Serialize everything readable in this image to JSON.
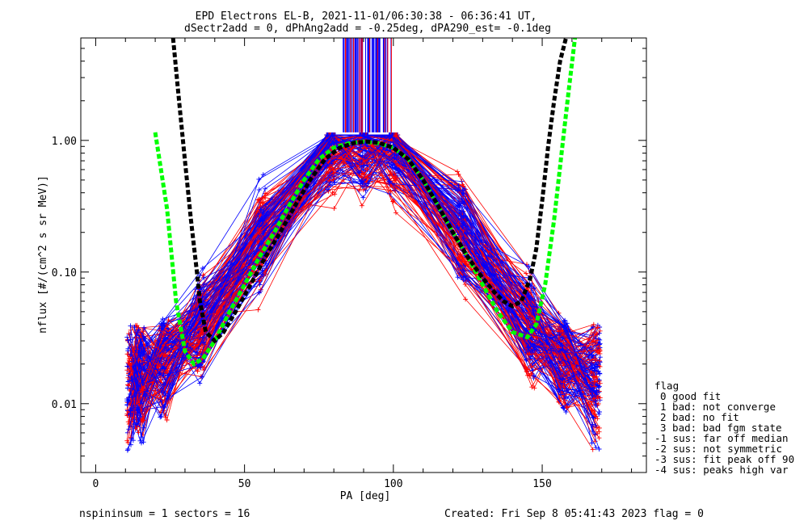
{
  "chart_data": {
    "type": "line",
    "title": "EPD Electrons EL-B, 2021-11-01/06:30:38 - 06:36:41 UT,",
    "subtitle": "dSectr2add = 0, dPhAng2add = -0.25deg, dPA290_est=  -0.1deg",
    "xlabel": "PA [deg]",
    "ylabel": "nflux [#/(cm^2 s sr MeV)]",
    "xlim": [
      -5,
      185
    ],
    "ylim": [
      0.003,
      6.0
    ],
    "yscale": "log",
    "x_ticks": [
      "0",
      "50",
      "100",
      "150"
    ],
    "y_ticks": [
      "0.01",
      "0.10",
      "1.00"
    ],
    "grid": false,
    "legend_position": "right",
    "legend": {
      "title": "flag",
      "items": [
        "0 good fit",
        "1 bad: not converge",
        "2 bad: no fit",
        "3 bad: bad fgm state",
        "-1 sus: far off median",
        "-2 sus: not symmetric",
        "-3 sus: fit peak off 90",
        "-4 sus: peaks high var"
      ]
    },
    "series": [
      {
        "color": "#00ff00",
        "x": [
          20,
          24,
          27,
          30,
          33,
          36,
          40,
          45,
          50,
          55,
          60,
          65,
          70,
          75,
          80,
          85,
          90,
          95,
          100,
          105,
          110,
          115,
          120,
          125,
          130,
          135,
          140,
          145,
          148,
          151,
          154,
          157,
          159,
          161
        ],
        "y": [
          1.15,
          0.3,
          0.06,
          0.025,
          0.02,
          0.022,
          0.03,
          0.05,
          0.08,
          0.13,
          0.2,
          0.32,
          0.5,
          0.72,
          0.88,
          0.95,
          0.98,
          0.95,
          0.88,
          0.72,
          0.5,
          0.32,
          0.2,
          0.13,
          0.08,
          0.05,
          0.035,
          0.032,
          0.04,
          0.08,
          0.25,
          1.0,
          2.5,
          6.0
        ]
      },
      {
        "color": "#000000",
        "x": [
          26,
          28,
          30,
          32,
          34,
          35,
          37,
          40,
          43,
          47,
          52,
          57,
          62,
          67,
          72,
          77,
          82,
          87,
          91,
          95,
          100,
          105,
          110,
          115,
          120,
          125,
          130,
          134,
          137,
          140,
          143,
          146,
          148,
          150,
          152,
          154,
          156,
          158
        ],
        "y": [
          6.0,
          2.0,
          0.7,
          0.25,
          0.1,
          0.06,
          0.035,
          0.03,
          0.035,
          0.05,
          0.08,
          0.13,
          0.2,
          0.32,
          0.5,
          0.72,
          0.88,
          0.96,
          0.98,
          0.96,
          0.88,
          0.72,
          0.5,
          0.32,
          0.2,
          0.13,
          0.09,
          0.07,
          0.06,
          0.055,
          0.06,
          0.09,
          0.15,
          0.35,
          0.9,
          2.0,
          4.0,
          6.0
        ]
      }
    ],
    "ensemble_note": "many red and blue crossed-marker traces at sector PAs 12,15,23,35,56,79,90,100,123,146,157,168"
  },
  "footer": {
    "left": "nspininsum =  1  sectors = 16",
    "right": "Created: Fri Sep  8 05:41:43 2023   flag = 0"
  }
}
